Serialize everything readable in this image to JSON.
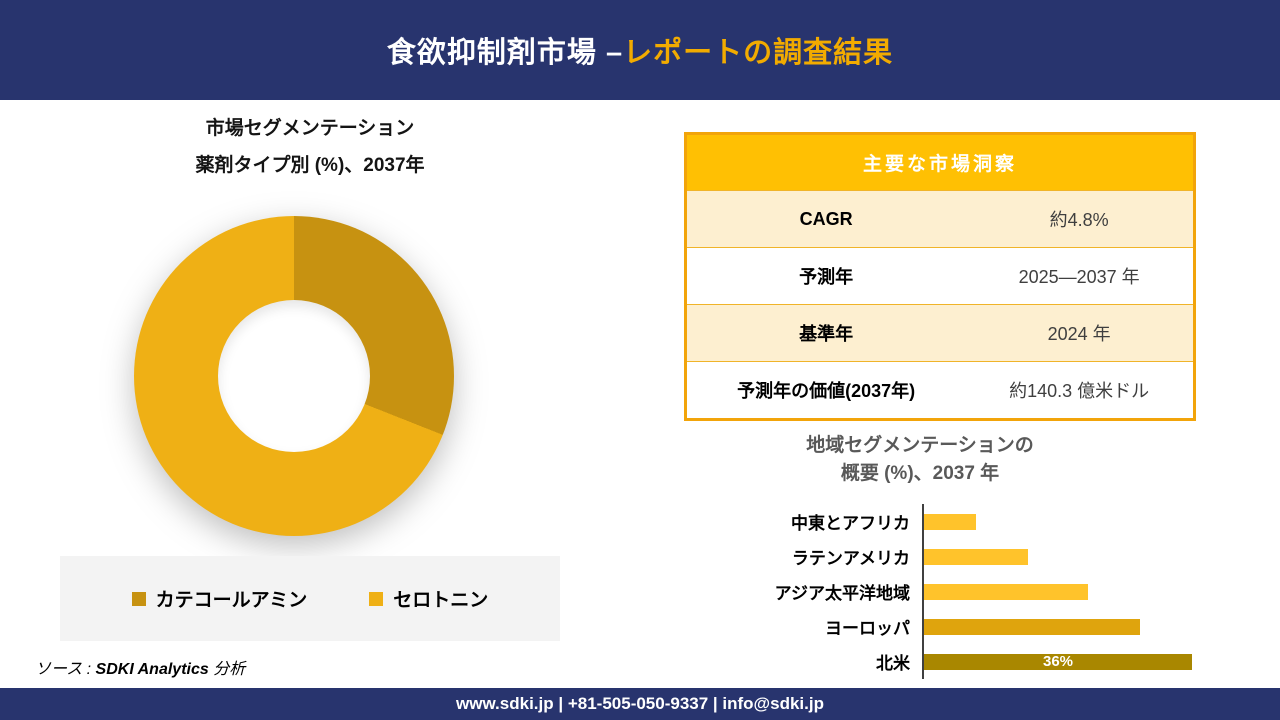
{
  "colors": {
    "navy": "#28346E",
    "header_title_gold": "#F2AB00",
    "table_header_bg": "#FFC003",
    "table_row_cream": "#FDEFD0",
    "table_border_gold": "#F2A40A",
    "legend_bg": "#F3F3F3",
    "axis_line": "#404040",
    "catecholamine_gold": "#C79211",
    "serotonin_yellow": "#EFB015",
    "bar_yellow": "#FFC32B",
    "bar_europe_gold": "#DFA40D",
    "bar_north_america_olive": "#A98700",
    "bar_title_gray": "#595959"
  },
  "header": {
    "title_white": "食欲抑制剤市場 –",
    "title_gold": "レポートの調査結果"
  },
  "chart_data": [
    {
      "type": "pie",
      "subtype": "donut",
      "title_lines": [
        "市場セグメンテーション",
        "薬剤タイプ別 (%)、2037年"
      ],
      "labels": [
        "カテコールアミン",
        "セロトニン"
      ],
      "values": [
        31,
        69
      ],
      "colors": [
        "#C79211",
        "#EFB015"
      ],
      "start_angle_deg": 0,
      "direction": "clockwise",
      "legend_position": "bottom",
      "data_labels_shown": false
    },
    {
      "type": "bar",
      "orientation": "horizontal",
      "title_lines": [
        "地域セグメンテーションの",
        "概要 (%)、2037 年"
      ],
      "categories": [
        "中東とアフリカ",
        "ラテンアメリカ",
        "アジア太平洋地域",
        "ヨーロッパ",
        "北米"
      ],
      "values": [
        7,
        14,
        22,
        29,
        36
      ],
      "colors": [
        "#FFC32B",
        "#FFC32B",
        "#FFC32B",
        "#DFA40D",
        "#A98700"
      ],
      "data_labels": [
        "",
        "",
        "",
        "",
        "36%"
      ],
      "xlim": [
        0,
        37
      ],
      "value_unit": "%",
      "grid": false,
      "axis_line_shown": true
    }
  ],
  "insights_table": {
    "header": "主要な市場洞察",
    "rows": [
      {
        "label": "CAGR",
        "value": "約4.8%"
      },
      {
        "label": "予測年",
        "value": "2025—2037 年"
      },
      {
        "label": "基準年",
        "value": "2024 年"
      },
      {
        "label": "予測年の価値(2037年)",
        "value": "約140.3 億米ドル"
      }
    ]
  },
  "source": {
    "prefix": "ソース : ",
    "brand": "SDKI Analytics",
    "suffix": " 分析"
  },
  "footer": {
    "text": "www.sdki.jp | +81-505-050-9337 | info@sdki.jp"
  }
}
